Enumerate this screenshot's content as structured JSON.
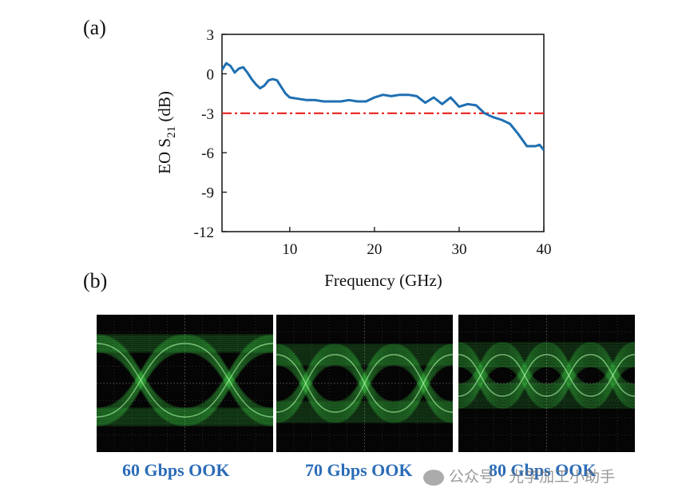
{
  "labels": {
    "a": "(a)",
    "b": "(b)"
  },
  "chart_data": {
    "type": "line",
    "title": "",
    "xlabel": "Frequency (GHz)",
    "ylabel_main": "EO S",
    "ylabel_sub": "21",
    "ylabel_unit": " (dB)",
    "xlim": [
      2,
      40
    ],
    "ylim": [
      -12,
      3
    ],
    "xticks": [
      10,
      20,
      30,
      40
    ],
    "yticks": [
      3,
      0,
      -3,
      -6,
      -9,
      -12
    ],
    "series": [
      {
        "name": "EO S21",
        "color": "#1f6fb2",
        "x": [
          2,
          2.5,
          3,
          3.5,
          4,
          4.5,
          5,
          5.5,
          6,
          6.5,
          7,
          7.5,
          8,
          8.5,
          9,
          9.5,
          10,
          11,
          12,
          13,
          14,
          15,
          16,
          17,
          18,
          19,
          20,
          21,
          22,
          23,
          24,
          25,
          26,
          27,
          28,
          29,
          30,
          31,
          32,
          33,
          34,
          35,
          36,
          37,
          38,
          39,
          39.5,
          40
        ],
        "y": [
          0.3,
          0.8,
          0.6,
          0.1,
          0.4,
          0.5,
          0.1,
          -0.4,
          -0.8,
          -1.1,
          -0.9,
          -0.5,
          -0.4,
          -0.5,
          -1.0,
          -1.5,
          -1.8,
          -1.9,
          -2.0,
          -2.0,
          -2.1,
          -2.1,
          -2.1,
          -2.0,
          -2.1,
          -2.1,
          -1.8,
          -1.6,
          -1.7,
          -1.6,
          -1.6,
          -1.7,
          -2.2,
          -1.8,
          -2.3,
          -1.8,
          -2.5,
          -2.3,
          -2.4,
          -3.0,
          -3.3,
          -3.5,
          -3.8,
          -4.6,
          -5.5,
          -5.5,
          -5.4,
          -5.8
        ]
      }
    ],
    "reference_line": {
      "y": -3,
      "color": "#e8231f",
      "style": "dash-dot"
    }
  },
  "eye_diagrams": [
    {
      "caption": "60 Gbps OOK",
      "bits": 2
    },
    {
      "caption": "70 Gbps OOK",
      "bits": 3
    },
    {
      "caption": "80 Gbps OOK",
      "bits": 4
    }
  ],
  "watermark": "公众号 · 光学加工小助手"
}
